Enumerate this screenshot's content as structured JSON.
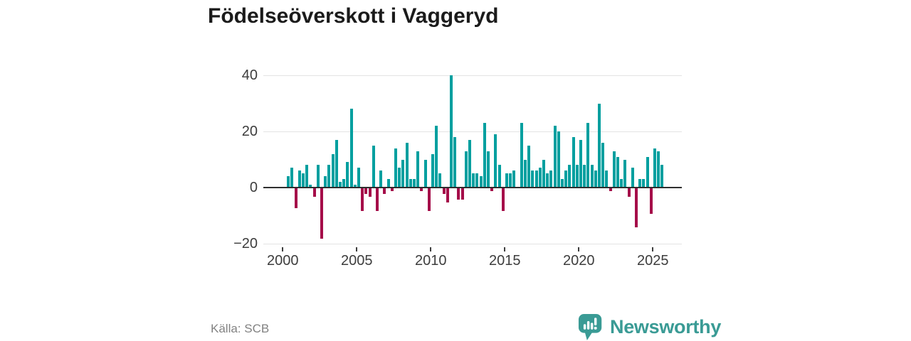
{
  "chart_data": {
    "type": "bar",
    "title": "Födelseöverskott i Vaggeryd",
    "source": "Källa: SCB",
    "frequency": "quarterly",
    "x_start": "2000-Q1",
    "x_end": "2025-Q3",
    "x_tick_labels": [
      "2000",
      "2005",
      "2010",
      "2015",
      "2020",
      "2025"
    ],
    "y_ticks": [
      40,
      20,
      0,
      -20
    ],
    "y_tick_labels": [
      "40",
      "20",
      "0",
      "−20"
    ],
    "ylim": [
      -20,
      40
    ],
    "grid": "horizontal",
    "legend": "none",
    "colors": {
      "positive": "#009f9f",
      "negative": "#a50d49"
    },
    "values": [
      null,
      4,
      7,
      -7,
      6,
      5,
      8,
      1,
      -3,
      8,
      -18,
      4,
      8,
      12,
      17,
      2,
      3,
      9,
      28,
      1,
      7,
      -8,
      -2,
      -3,
      15,
      -8,
      6,
      -2,
      3,
      -1,
      14,
      7,
      10,
      16,
      3,
      3,
      13,
      -1,
      10,
      -8,
      12,
      22,
      5,
      -2,
      -5,
      40,
      18,
      -4,
      -4,
      13,
      17,
      5,
      5,
      4,
      23,
      13,
      -1,
      19,
      8,
      -8,
      5,
      5,
      6,
      0,
      23,
      10,
      15,
      6,
      6,
      7,
      10,
      5,
      6,
      22,
      20,
      3,
      6,
      8,
      18,
      8,
      17,
      8,
      23,
      8,
      6,
      30,
      16,
      6,
      -1,
      13,
      11,
      3,
      10,
      -3,
      7,
      -14,
      3,
      3,
      11,
      -9,
      14,
      13,
      8
    ]
  },
  "footer": {
    "brand": "Newsworthy"
  }
}
